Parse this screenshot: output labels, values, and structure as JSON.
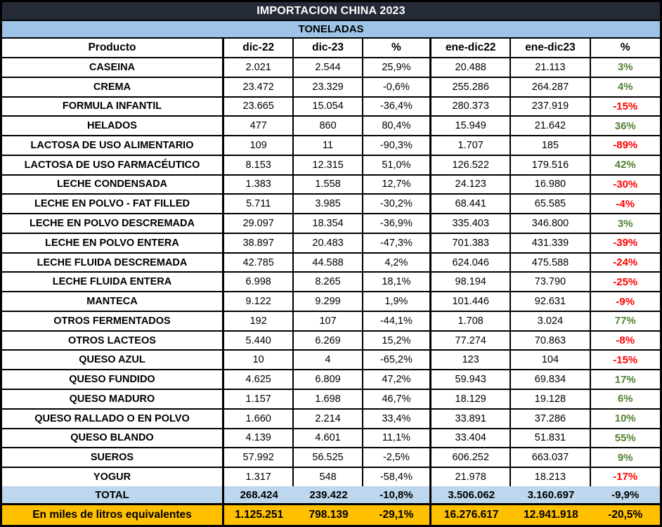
{
  "chart_data": {
    "type": "table",
    "title": "IMPORTACION CHINA 2023",
    "subtitle": "TONELADAS",
    "columns": [
      "Producto",
      "dic-22",
      "dic-23",
      "%",
      "ene-dic22",
      "ene-dic23",
      "%"
    ],
    "rows": [
      {
        "producto": "CASEINA",
        "dic22": "2.021",
        "dic23": "2.544",
        "pct_dic": "25,9%",
        "ene_dic22": "20.488",
        "ene_dic23": "21.113",
        "pct_anual": "3%",
        "trend": "up"
      },
      {
        "producto": "CREMA",
        "dic22": "23.472",
        "dic23": "23.329",
        "pct_dic": "-0,6%",
        "ene_dic22": "255.286",
        "ene_dic23": "264.287",
        "pct_anual": "4%",
        "trend": "up"
      },
      {
        "producto": "FORMULA INFANTIL",
        "dic22": "23.665",
        "dic23": "15.054",
        "pct_dic": "-36,4%",
        "ene_dic22": "280.373",
        "ene_dic23": "237.919",
        "pct_anual": "-15%",
        "trend": "down"
      },
      {
        "producto": "HELADOS",
        "dic22": "477",
        "dic23": "860",
        "pct_dic": "80,4%",
        "ene_dic22": "15.949",
        "ene_dic23": "21.642",
        "pct_anual": "36%",
        "trend": "up"
      },
      {
        "producto": "LACTOSA DE USO ALIMENTARIO",
        "dic22": "109",
        "dic23": "11",
        "pct_dic": "-90,3%",
        "ene_dic22": "1.707",
        "ene_dic23": "185",
        "pct_anual": "-89%",
        "trend": "down"
      },
      {
        "producto": "LACTOSA DE USO FARMACÉUTICO",
        "dic22": "8.153",
        "dic23": "12.315",
        "pct_dic": "51,0%",
        "ene_dic22": "126.522",
        "ene_dic23": "179.516",
        "pct_anual": "42%",
        "trend": "up"
      },
      {
        "producto": "LECHE CONDENSADA",
        "dic22": "1.383",
        "dic23": "1.558",
        "pct_dic": "12,7%",
        "ene_dic22": "24.123",
        "ene_dic23": "16.980",
        "pct_anual": "-30%",
        "trend": "down"
      },
      {
        "producto": "LECHE EN POLVO - FAT FILLED",
        "dic22": "5.711",
        "dic23": "3.985",
        "pct_dic": "-30,2%",
        "ene_dic22": "68.441",
        "ene_dic23": "65.585",
        "pct_anual": "-4%",
        "trend": "down"
      },
      {
        "producto": "LECHE EN POLVO DESCREMADA",
        "dic22": "29.097",
        "dic23": "18.354",
        "pct_dic": "-36,9%",
        "ene_dic22": "335.403",
        "ene_dic23": "346.800",
        "pct_anual": "3%",
        "trend": "up"
      },
      {
        "producto": "LECHE EN POLVO ENTERA",
        "dic22": "38.897",
        "dic23": "20.483",
        "pct_dic": "-47,3%",
        "ene_dic22": "701.383",
        "ene_dic23": "431.339",
        "pct_anual": "-39%",
        "trend": "down"
      },
      {
        "producto": "LECHE FLUIDA DESCREMADA",
        "dic22": "42.785",
        "dic23": "44.588",
        "pct_dic": "4,2%",
        "ene_dic22": "624.046",
        "ene_dic23": "475.588",
        "pct_anual": "-24%",
        "trend": "down"
      },
      {
        "producto": "LECHE FLUIDA ENTERA",
        "dic22": "6.998",
        "dic23": "8.265",
        "pct_dic": "18,1%",
        "ene_dic22": "98.194",
        "ene_dic23": "73.790",
        "pct_anual": "-25%",
        "trend": "down"
      },
      {
        "producto": "MANTECA",
        "dic22": "9.122",
        "dic23": "9.299",
        "pct_dic": "1,9%",
        "ene_dic22": "101.446",
        "ene_dic23": "92.631",
        "pct_anual": "-9%",
        "trend": "down"
      },
      {
        "producto": "OTROS FERMENTADOS",
        "dic22": "192",
        "dic23": "107",
        "pct_dic": "-44,1%",
        "ene_dic22": "1.708",
        "ene_dic23": "3.024",
        "pct_anual": "77%",
        "trend": "up"
      },
      {
        "producto": "OTROS LACTEOS",
        "dic22": "5.440",
        "dic23": "6.269",
        "pct_dic": "15,2%",
        "ene_dic22": "77.274",
        "ene_dic23": "70.863",
        "pct_anual": "-8%",
        "trend": "down"
      },
      {
        "producto": "QUESO AZUL",
        "dic22": "10",
        "dic23": "4",
        "pct_dic": "-65,2%",
        "ene_dic22": "123",
        "ene_dic23": "104",
        "pct_anual": "-15%",
        "trend": "down"
      },
      {
        "producto": "QUESO FUNDIDO",
        "dic22": "4.625",
        "dic23": "6.809",
        "pct_dic": "47,2%",
        "ene_dic22": "59.943",
        "ene_dic23": "69.834",
        "pct_anual": "17%",
        "trend": "up"
      },
      {
        "producto": "QUESO MADURO",
        "dic22": "1.157",
        "dic23": "1.698",
        "pct_dic": "46,7%",
        "ene_dic22": "18.129",
        "ene_dic23": "19.128",
        "pct_anual": "6%",
        "trend": "up"
      },
      {
        "producto": "QUESO RALLADO O EN POLVO",
        "dic22": "1.660",
        "dic23": "2.214",
        "pct_dic": "33,4%",
        "ene_dic22": "33.891",
        "ene_dic23": "37.286",
        "pct_anual": "10%",
        "trend": "up"
      },
      {
        "producto": "QUESO BLANDO",
        "dic22": "4.139",
        "dic23": "4.601",
        "pct_dic": "11,1%",
        "ene_dic22": "33.404",
        "ene_dic23": "51.831",
        "pct_anual": "55%",
        "trend": "up"
      },
      {
        "producto": "SUEROS",
        "dic22": "57.992",
        "dic23": "56.525",
        "pct_dic": "-2,5%",
        "ene_dic22": "606.252",
        "ene_dic23": "663.037",
        "pct_anual": "9%",
        "trend": "up"
      },
      {
        "producto": "YOGUR",
        "dic22": "1.317",
        "dic23": "548",
        "pct_dic": "-58,4%",
        "ene_dic22": "21.978",
        "ene_dic23": "18.213",
        "pct_anual": "-17%",
        "trend": "down"
      }
    ],
    "total_row": {
      "label": "TOTAL",
      "dic22": "268.424",
      "dic23": "239.422",
      "pct_dic": "-10,8%",
      "ene_dic22": "3.506.062",
      "ene_dic23": "3.160.697",
      "pct_anual": "-9,9%"
    },
    "liters_row": {
      "label": "En miles de litros equivalentes",
      "dic22": "1.125.251",
      "dic23": "798.139",
      "pct_dic": "-29,1%",
      "ene_dic22": "16.276.617",
      "ene_dic23": "12.941.918",
      "pct_anual": "-20,5%"
    }
  },
  "colors": {
    "title_bg": "#242B36",
    "title_text": "#FFFFFF",
    "subtitle_bg": "#9DC3E6",
    "total_bg": "#BDD7EE",
    "liters_bg": "#FFC000",
    "positive_pct": "#538135",
    "negative_pct": "#FF0000",
    "grid": "#000000"
  }
}
